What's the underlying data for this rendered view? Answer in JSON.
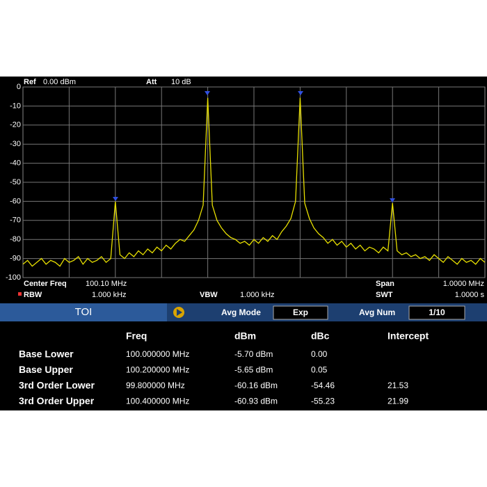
{
  "header": {
    "ref_label": "Ref",
    "ref_value": "0.00 dBm",
    "att_label": "Att",
    "att_value": "10 dB"
  },
  "footer": {
    "center_label": "Center Freq",
    "center_value": "100.10 MHz",
    "span_label": "Span",
    "span_value": "1.0000 MHz",
    "rbw_label": "RBW",
    "rbw_value": "1.000 kHz",
    "vbw_label": "VBW",
    "vbw_value": "1.000 kHz",
    "swt_label": "SWT",
    "swt_value": "1.0000 s"
  },
  "toolbar": {
    "mode": "TOI",
    "avg_mode_label": "Avg Mode",
    "avg_mode_value": "Exp",
    "avg_num_label": "Avg Num",
    "avg_num_value": "1/10"
  },
  "table": {
    "headers": [
      "Freq",
      "dBm",
      "dBc",
      "Intercept"
    ],
    "rows": [
      [
        "Base Lower",
        "100.000000 MHz",
        "-5.70 dBm",
        "0.00"
      ],
      [
        "Base Upper",
        "100.200000 MHz",
        "-5.65 dBm",
        "0.05"
      ],
      [
        "3rd Order Lower",
        "99.800000 MHz",
        "-60.16 dBm",
        "-54.46",
        "21.53"
      ],
      [
        "3rd Order Upper",
        "100.400000 MHz",
        "-60.93 dBm",
        "-55.23",
        "21.99"
      ]
    ]
  },
  "chart_data": {
    "type": "line",
    "color": "#e8e000",
    "grid": true,
    "ylim": [
      -100,
      0
    ],
    "yticks": [
      0,
      -10,
      -20,
      -30,
      -40,
      -50,
      -60,
      -70,
      -80,
      -90,
      -100
    ],
    "values": [
      -93,
      -91,
      -94,
      -92,
      -90,
      -93,
      -91,
      -92,
      -94,
      -90,
      -92,
      -91,
      -89,
      -93,
      -90,
      -92,
      -91,
      -89,
      -92,
      -90,
      -60.16,
      -88,
      -90,
      -87,
      -89,
      -86,
      -88,
      -85,
      -87,
      -84,
      -86,
      -83,
      -85,
      -82,
      -80,
      -81,
      -78,
      -75,
      -70,
      -62,
      -5.7,
      -62,
      -70,
      -74,
      -77,
      -79,
      -80,
      -82,
      -81,
      -83,
      -80,
      -82,
      -79,
      -81,
      -78,
      -80,
      -76,
      -73,
      -69,
      -60,
      -5.65,
      -61,
      -69,
      -74,
      -77,
      -79,
      -82,
      -80,
      -83,
      -81,
      -84,
      -82,
      -85,
      -83,
      -86,
      -84,
      -85,
      -87,
      -84,
      -86,
      -60.93,
      -86,
      -88,
      -87,
      -89,
      -88,
      -90,
      -89,
      -91,
      -88,
      -90,
      -92,
      -89,
      -91,
      -93,
      -90,
      -92,
      -91,
      -93,
      -90,
      -92
    ]
  }
}
